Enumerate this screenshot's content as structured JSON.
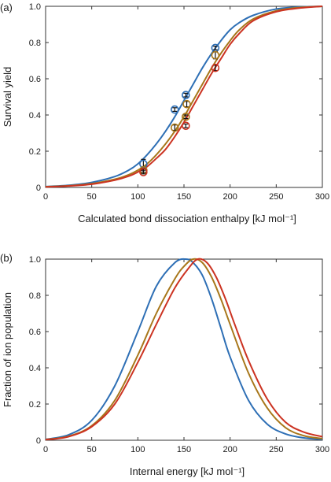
{
  "figure": {
    "panel_a_tag": "(a)",
    "panel_b_tag": "(b)"
  },
  "chart_data": [
    {
      "type": "line",
      "panel": "(a)",
      "xlabel": "Calculated bond dissociation enthalpy [kJ mol⁻¹]",
      "ylabel": "Survival yield",
      "xlim": [
        0,
        300
      ],
      "ylim": [
        0,
        1.0
      ],
      "x_ticks": [
        0,
        50,
        100,
        150,
        200,
        250,
        300
      ],
      "y_ticks": [
        0,
        0.2,
        0.4,
        0.6,
        0.8,
        1.0
      ],
      "x_tick_labels": [
        "0",
        "50",
        "100",
        "150",
        "200",
        "250",
        "300"
      ],
      "y_tick_labels": [
        "0",
        "0.2",
        "0.4",
        "0.6",
        "0.8",
        "1.0"
      ],
      "series": [
        {
          "color": "#2e6fb5",
          "x": [
            0,
            25,
            50,
            75,
            90,
            100,
            110,
            120,
            130,
            140,
            150,
            160,
            170,
            180,
            190,
            200,
            210,
            225,
            250,
            275,
            300
          ],
          "values": [
            0.005,
            0.012,
            0.028,
            0.06,
            0.095,
            0.13,
            0.18,
            0.24,
            0.31,
            0.39,
            0.48,
            0.57,
            0.66,
            0.74,
            0.81,
            0.87,
            0.91,
            0.95,
            0.985,
            0.996,
            1.0
          ],
          "points": [
            {
              "x": 106,
              "y": 0.13,
              "err": 0.025
            },
            {
              "x": 140,
              "y": 0.43,
              "err": 0.01
            },
            {
              "x": 152,
              "y": 0.51,
              "err": 0.01
            },
            {
              "x": 184,
              "y": 0.77,
              "err": 0.01
            }
          ]
        },
        {
          "color": "#a8771b",
          "x": [
            0,
            25,
            50,
            75,
            90,
            100,
            110,
            120,
            130,
            140,
            150,
            160,
            170,
            180,
            190,
            200,
            210,
            225,
            250,
            275,
            300
          ],
          "values": [
            0.004,
            0.009,
            0.021,
            0.045,
            0.07,
            0.095,
            0.13,
            0.18,
            0.24,
            0.31,
            0.39,
            0.48,
            0.57,
            0.66,
            0.74,
            0.81,
            0.87,
            0.93,
            0.975,
            0.993,
            1.0
          ],
          "points": [
            {
              "x": 106,
              "y": 0.095,
              "err": 0.01
            },
            {
              "x": 140,
              "y": 0.33,
              "err": 0.015
            },
            {
              "x": 152,
              "y": 0.39,
              "err": 0.01
            },
            {
              "x": 153,
              "y": 0.46,
              "err": 0.015
            },
            {
              "x": 184,
              "y": 0.73,
              "err": 0.02
            }
          ]
        },
        {
          "color": "#cc3322",
          "x": [
            0,
            25,
            50,
            75,
            90,
            100,
            110,
            120,
            130,
            140,
            150,
            160,
            170,
            180,
            190,
            200,
            210,
            225,
            250,
            275,
            300
          ],
          "values": [
            0.003,
            0.008,
            0.018,
            0.04,
            0.062,
            0.085,
            0.115,
            0.16,
            0.21,
            0.28,
            0.36,
            0.45,
            0.54,
            0.63,
            0.71,
            0.79,
            0.85,
            0.92,
            0.97,
            0.99,
            1.0
          ],
          "points": [
            {
              "x": 106,
              "y": 0.085,
              "err": 0.01
            },
            {
              "x": 152,
              "y": 0.34,
              "err": 0.01
            },
            {
              "x": 184,
              "y": 0.66,
              "err": 0.015
            }
          ]
        }
      ]
    },
    {
      "type": "line",
      "panel": "(b)",
      "xlabel": "Internal energy [kJ mol⁻¹]",
      "ylabel": "Fraction of ion population",
      "xlim": [
        0,
        300
      ],
      "ylim": [
        0,
        1.0
      ],
      "x_ticks": [
        0,
        50,
        100,
        150,
        200,
        250,
        300
      ],
      "y_ticks": [
        0,
        0.2,
        0.4,
        0.6,
        0.8,
        1.0
      ],
      "x_tick_labels": [
        "0",
        "50",
        "100",
        "150",
        "200",
        "250",
        "300"
      ],
      "y_tick_labels": [
        "0",
        "0.2",
        "0.4",
        "0.6",
        "0.8",
        "1.0"
      ],
      "series": [
        {
          "color": "#2e6fb5",
          "x": [
            0,
            25,
            50,
            75,
            100,
            120,
            140,
            152,
            160,
            170,
            180,
            190,
            200,
            220,
            240,
            260,
            280,
            300
          ],
          "values": [
            0.005,
            0.03,
            0.11,
            0.3,
            0.6,
            0.85,
            0.98,
            1.0,
            0.98,
            0.91,
            0.78,
            0.62,
            0.46,
            0.22,
            0.09,
            0.035,
            0.013,
            0.005
          ],
          "points": []
        },
        {
          "color": "#a8771b",
          "x": [
            0,
            25,
            50,
            75,
            100,
            120,
            140,
            150,
            160,
            170,
            180,
            190,
            200,
            220,
            240,
            260,
            280,
            300
          ],
          "values": [
            0.004,
            0.022,
            0.08,
            0.22,
            0.47,
            0.7,
            0.89,
            0.96,
            1.0,
            0.98,
            0.9,
            0.78,
            0.64,
            0.37,
            0.18,
            0.07,
            0.025,
            0.009
          ],
          "points": []
        },
        {
          "color": "#cc3322",
          "x": [
            0,
            25,
            50,
            75,
            100,
            120,
            140,
            155,
            165,
            175,
            185,
            195,
            205,
            220,
            240,
            260,
            280,
            300
          ],
          "values": [
            0.003,
            0.02,
            0.075,
            0.2,
            0.43,
            0.64,
            0.84,
            0.95,
            1.0,
            0.98,
            0.9,
            0.78,
            0.64,
            0.44,
            0.23,
            0.1,
            0.045,
            0.02
          ],
          "points": []
        }
      ]
    }
  ]
}
